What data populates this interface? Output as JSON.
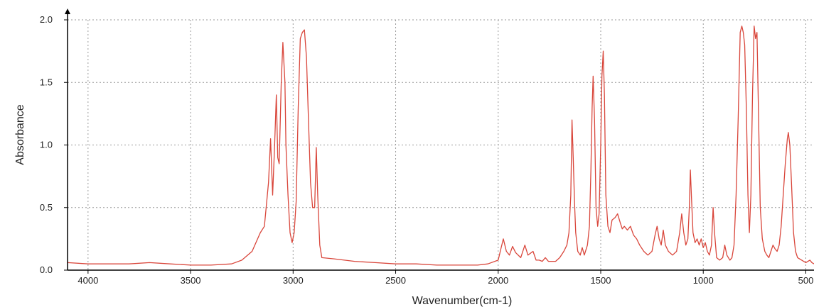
{
  "chart_data": {
    "type": "line",
    "title": "",
    "xlabel": "Wavenumber(cm-1)",
    "ylabel": "Absorbance",
    "xlim": [
      4100,
      460
    ],
    "ylim": [
      0,
      2.0
    ],
    "x_reversed": true,
    "grid": true,
    "grid_style": "dotted",
    "x_ticks": [
      4000,
      3500,
      3000,
      2500,
      2000,
      1500,
      1000,
      500
    ],
    "x_tick_labels": [
      "4000",
      "3500",
      "3000",
      "2500",
      "2000",
      "1500",
      "1000",
      "500"
    ],
    "y_ticks": [
      0,
      0.5,
      1.0,
      1.5,
      2.0
    ],
    "y_tick_labels": [
      "0.0",
      "0.5",
      "1.0",
      "1.5",
      "2.0"
    ],
    "series": [
      {
        "color": "#d9463b",
        "points": [
          [
            4100,
            0.06
          ],
          [
            4000,
            0.05
          ],
          [
            3900,
            0.05
          ],
          [
            3800,
            0.05
          ],
          [
            3700,
            0.06
          ],
          [
            3600,
            0.05
          ],
          [
            3500,
            0.04
          ],
          [
            3400,
            0.04
          ],
          [
            3300,
            0.05
          ],
          [
            3250,
            0.08
          ],
          [
            3200,
            0.15
          ],
          [
            3160,
            0.3
          ],
          [
            3140,
            0.35
          ],
          [
            3120,
            0.7
          ],
          [
            3110,
            1.05
          ],
          [
            3100,
            0.6
          ],
          [
            3090,
            1.0
          ],
          [
            3082,
            1.4
          ],
          [
            3075,
            0.9
          ],
          [
            3068,
            0.85
          ],
          [
            3058,
            1.5
          ],
          [
            3050,
            1.82
          ],
          [
            3040,
            1.5
          ],
          [
            3035,
            1.0
          ],
          [
            3025,
            0.6
          ],
          [
            3015,
            0.3
          ],
          [
            3005,
            0.22
          ],
          [
            2995,
            0.3
          ],
          [
            2985,
            0.55
          ],
          [
            2975,
            1.3
          ],
          [
            2965,
            1.85
          ],
          [
            2955,
            1.9
          ],
          [
            2945,
            1.92
          ],
          [
            2935,
            1.7
          ],
          [
            2925,
            1.2
          ],
          [
            2915,
            0.7
          ],
          [
            2905,
            0.5
          ],
          [
            2895,
            0.5
          ],
          [
            2887,
            0.98
          ],
          [
            2880,
            0.6
          ],
          [
            2870,
            0.2
          ],
          [
            2860,
            0.1
          ],
          [
            2800,
            0.09
          ],
          [
            2700,
            0.07
          ],
          [
            2600,
            0.06
          ],
          [
            2500,
            0.05
          ],
          [
            2400,
            0.05
          ],
          [
            2300,
            0.04
          ],
          [
            2200,
            0.04
          ],
          [
            2100,
            0.04
          ],
          [
            2050,
            0.05
          ],
          [
            2000,
            0.08
          ],
          [
            1990,
            0.15
          ],
          [
            1975,
            0.25
          ],
          [
            1960,
            0.15
          ],
          [
            1945,
            0.12
          ],
          [
            1930,
            0.19
          ],
          [
            1915,
            0.14
          ],
          [
            1890,
            0.1
          ],
          [
            1870,
            0.2
          ],
          [
            1855,
            0.12
          ],
          [
            1830,
            0.15
          ],
          [
            1815,
            0.08
          ],
          [
            1800,
            0.08
          ],
          [
            1785,
            0.07
          ],
          [
            1770,
            0.1
          ],
          [
            1755,
            0.07
          ],
          [
            1720,
            0.07
          ],
          [
            1700,
            0.1
          ],
          [
            1680,
            0.15
          ],
          [
            1665,
            0.2
          ],
          [
            1655,
            0.3
          ],
          [
            1646,
            0.6
          ],
          [
            1640,
            1.2
          ],
          [
            1634,
            0.9
          ],
          [
            1628,
            0.55
          ],
          [
            1622,
            0.3
          ],
          [
            1612,
            0.15
          ],
          [
            1600,
            0.12
          ],
          [
            1590,
            0.18
          ],
          [
            1580,
            0.12
          ],
          [
            1565,
            0.2
          ],
          [
            1555,
            0.35
          ],
          [
            1548,
            0.8
          ],
          [
            1542,
            1.3
          ],
          [
            1537,
            1.55
          ],
          [
            1530,
            1.2
          ],
          [
            1523,
            0.5
          ],
          [
            1515,
            0.35
          ],
          [
            1508,
            0.45
          ],
          [
            1500,
            1.0
          ],
          [
            1494,
            1.55
          ],
          [
            1488,
            1.75
          ],
          [
            1482,
            1.4
          ],
          [
            1475,
            0.6
          ],
          [
            1465,
            0.35
          ],
          [
            1455,
            0.3
          ],
          [
            1445,
            0.4
          ],
          [
            1430,
            0.42
          ],
          [
            1418,
            0.45
          ],
          [
            1405,
            0.38
          ],
          [
            1395,
            0.33
          ],
          [
            1385,
            0.35
          ],
          [
            1370,
            0.32
          ],
          [
            1355,
            0.35
          ],
          [
            1340,
            0.28
          ],
          [
            1325,
            0.25
          ],
          [
            1310,
            0.2
          ],
          [
            1290,
            0.15
          ],
          [
            1270,
            0.12
          ],
          [
            1250,
            0.15
          ],
          [
            1235,
            0.28
          ],
          [
            1225,
            0.35
          ],
          [
            1215,
            0.25
          ],
          [
            1205,
            0.2
          ],
          [
            1195,
            0.32
          ],
          [
            1185,
            0.2
          ],
          [
            1170,
            0.15
          ],
          [
            1150,
            0.12
          ],
          [
            1130,
            0.15
          ],
          [
            1115,
            0.3
          ],
          [
            1105,
            0.45
          ],
          [
            1095,
            0.3
          ],
          [
            1085,
            0.2
          ],
          [
            1075,
            0.25
          ],
          [
            1068,
            0.5
          ],
          [
            1063,
            0.8
          ],
          [
            1058,
            0.6
          ],
          [
            1050,
            0.3
          ],
          [
            1040,
            0.22
          ],
          [
            1030,
            0.25
          ],
          [
            1020,
            0.2
          ],
          [
            1010,
            0.25
          ],
          [
            1000,
            0.18
          ],
          [
            990,
            0.22
          ],
          [
            980,
            0.15
          ],
          [
            970,
            0.12
          ],
          [
            960,
            0.2
          ],
          [
            952,
            0.5
          ],
          [
            945,
            0.3
          ],
          [
            935,
            0.1
          ],
          [
            920,
            0.08
          ],
          [
            905,
            0.1
          ],
          [
            895,
            0.2
          ],
          [
            885,
            0.12
          ],
          [
            870,
            0.08
          ],
          [
            860,
            0.1
          ],
          [
            850,
            0.2
          ],
          [
            840,
            0.6
          ],
          [
            830,
            1.2
          ],
          [
            820,
            1.9
          ],
          [
            812,
            1.95
          ],
          [
            805,
            1.9
          ],
          [
            798,
            1.8
          ],
          [
            790,
            1.3
          ],
          [
            782,
            0.6
          ],
          [
            775,
            0.3
          ],
          [
            768,
            0.6
          ],
          [
            760,
            1.4
          ],
          [
            752,
            1.95
          ],
          [
            745,
            1.85
          ],
          [
            738,
            1.9
          ],
          [
            730,
            1.2
          ],
          [
            722,
            0.5
          ],
          [
            712,
            0.25
          ],
          [
            700,
            0.15
          ],
          [
            690,
            0.12
          ],
          [
            680,
            0.1
          ],
          [
            670,
            0.15
          ],
          [
            660,
            0.2
          ],
          [
            650,
            0.17
          ],
          [
            640,
            0.15
          ],
          [
            630,
            0.2
          ],
          [
            620,
            0.35
          ],
          [
            610,
            0.6
          ],
          [
            600,
            0.85
          ],
          [
            590,
            1.05
          ],
          [
            585,
            1.1
          ],
          [
            578,
            1.0
          ],
          [
            570,
            0.7
          ],
          [
            560,
            0.3
          ],
          [
            550,
            0.15
          ],
          [
            540,
            0.1
          ],
          [
            520,
            0.08
          ],
          [
            500,
            0.06
          ],
          [
            480,
            0.08
          ],
          [
            470,
            0.06
          ],
          [
            460,
            0.05
          ]
        ]
      }
    ]
  }
}
